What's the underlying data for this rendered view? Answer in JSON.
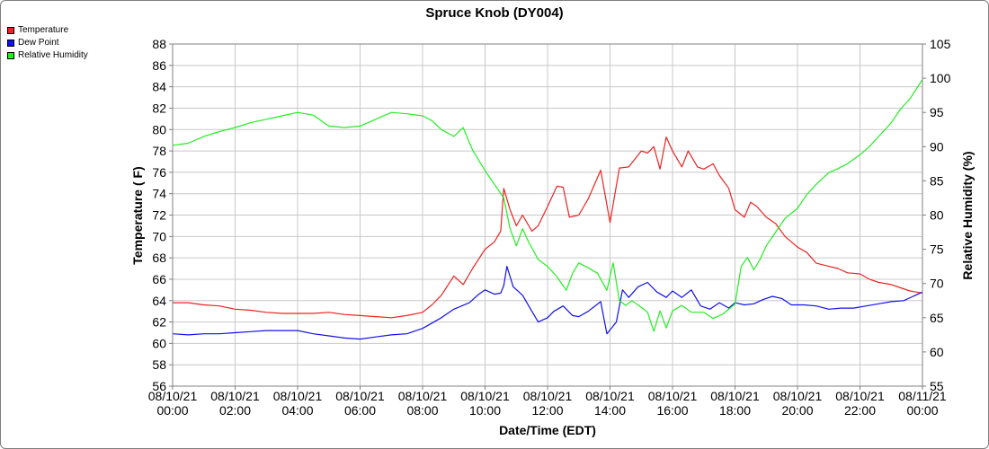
{
  "chart_data": {
    "type": "line",
    "title": "Spruce Knob (DY004)",
    "xlabel": "Date/Time (EDT)",
    "ylabel_left": "Temperature ( F)",
    "ylabel_right": "Relative Humidity (%)",
    "y_left_range": [
      56,
      88
    ],
    "y_right_range": [
      55,
      105
    ],
    "y_left_ticks": [
      56,
      58,
      60,
      62,
      64,
      66,
      68,
      70,
      72,
      74,
      76,
      78,
      80,
      82,
      84,
      86,
      88
    ],
    "y_right_ticks": [
      55,
      60,
      65,
      70,
      75,
      80,
      85,
      90,
      95,
      100,
      105
    ],
    "x_range_hours": [
      0,
      24
    ],
    "x_tick_labels": [
      [
        "08/10/21",
        "00:00"
      ],
      [
        "08/10/21",
        "02:00"
      ],
      [
        "08/10/21",
        "04:00"
      ],
      [
        "08/10/21",
        "06:00"
      ],
      [
        "08/10/21",
        "08:00"
      ],
      [
        "08/10/21",
        "10:00"
      ],
      [
        "08/10/21",
        "12:00"
      ],
      [
        "08/10/21",
        "14:00"
      ],
      [
        "08/10/21",
        "16:00"
      ],
      [
        "08/10/21",
        "18:00"
      ],
      [
        "08/10/21",
        "20:00"
      ],
      [
        "08/10/21",
        "22:00"
      ],
      [
        "08/11/21",
        "00:00"
      ]
    ],
    "grid": true,
    "legend_position": "top-left",
    "series": [
      {
        "name": "Temperature",
        "axis": "left",
        "color": "#ee2222",
        "points": [
          [
            0,
            63.8
          ],
          [
            0.5,
            63.8
          ],
          [
            1.0,
            63.6
          ],
          [
            1.5,
            63.5
          ],
          [
            2.0,
            63.2
          ],
          [
            2.5,
            63.1
          ],
          [
            3.0,
            62.9
          ],
          [
            3.5,
            62.8
          ],
          [
            4.0,
            62.8
          ],
          [
            4.5,
            62.8
          ],
          [
            5.0,
            62.9
          ],
          [
            5.5,
            62.7
          ],
          [
            6.0,
            62.6
          ],
          [
            6.5,
            62.5
          ],
          [
            7.0,
            62.4
          ],
          [
            7.5,
            62.6
          ],
          [
            8.0,
            62.9
          ],
          [
            8.3,
            63.6
          ],
          [
            8.6,
            64.5
          ],
          [
            9.0,
            66.3
          ],
          [
            9.3,
            65.5
          ],
          [
            9.6,
            67.0
          ],
          [
            10.0,
            68.8
          ],
          [
            10.3,
            69.5
          ],
          [
            10.5,
            70.5
          ],
          [
            10.6,
            74.5
          ],
          [
            10.8,
            72.5
          ],
          [
            11.0,
            71.0
          ],
          [
            11.2,
            72.0
          ],
          [
            11.5,
            70.5
          ],
          [
            11.7,
            71.0
          ],
          [
            12.0,
            72.8
          ],
          [
            12.3,
            74.7
          ],
          [
            12.5,
            74.6
          ],
          [
            12.7,
            71.8
          ],
          [
            13.0,
            72.0
          ],
          [
            13.3,
            73.5
          ],
          [
            13.7,
            76.2
          ],
          [
            14.0,
            71.3
          ],
          [
            14.3,
            76.4
          ],
          [
            14.6,
            76.5
          ],
          [
            15.0,
            78.0
          ],
          [
            15.2,
            77.8
          ],
          [
            15.4,
            78.4
          ],
          [
            15.6,
            76.3
          ],
          [
            15.8,
            79.3
          ],
          [
            16.0,
            78.0
          ],
          [
            16.3,
            76.5
          ],
          [
            16.5,
            78.0
          ],
          [
            16.8,
            76.5
          ],
          [
            17.0,
            76.3
          ],
          [
            17.3,
            76.8
          ],
          [
            17.5,
            75.7
          ],
          [
            17.8,
            74.5
          ],
          [
            18.0,
            72.5
          ],
          [
            18.3,
            71.8
          ],
          [
            18.5,
            73.2
          ],
          [
            18.7,
            72.8
          ],
          [
            19.0,
            71.8
          ],
          [
            19.3,
            71.2
          ],
          [
            19.6,
            70.0
          ],
          [
            20.0,
            69.0
          ],
          [
            20.3,
            68.5
          ],
          [
            20.6,
            67.5
          ],
          [
            21.0,
            67.2
          ],
          [
            21.3,
            67.0
          ],
          [
            21.6,
            66.6
          ],
          [
            22.0,
            66.5
          ],
          [
            22.3,
            66.0
          ],
          [
            22.6,
            65.7
          ],
          [
            23.0,
            65.5
          ],
          [
            23.3,
            65.2
          ],
          [
            23.6,
            64.9
          ],
          [
            24.0,
            64.7
          ]
        ]
      },
      {
        "name": "Dew Point",
        "axis": "left",
        "color": "#1111ee",
        "points": [
          [
            0,
            60.9
          ],
          [
            0.5,
            60.8
          ],
          [
            1.0,
            60.9
          ],
          [
            1.5,
            60.9
          ],
          [
            2.0,
            61.0
          ],
          [
            2.5,
            61.1
          ],
          [
            3.0,
            61.2
          ],
          [
            3.5,
            61.2
          ],
          [
            4.0,
            61.2
          ],
          [
            4.5,
            60.9
          ],
          [
            5.0,
            60.7
          ],
          [
            5.5,
            60.5
          ],
          [
            6.0,
            60.4
          ],
          [
            6.5,
            60.6
          ],
          [
            7.0,
            60.8
          ],
          [
            7.5,
            60.9
          ],
          [
            8.0,
            61.4
          ],
          [
            8.3,
            61.9
          ],
          [
            8.6,
            62.4
          ],
          [
            9.0,
            63.2
          ],
          [
            9.5,
            63.8
          ],
          [
            9.8,
            64.6
          ],
          [
            10.0,
            65.0
          ],
          [
            10.3,
            64.6
          ],
          [
            10.5,
            64.7
          ],
          [
            10.6,
            65.4
          ],
          [
            10.7,
            67.2
          ],
          [
            10.9,
            65.3
          ],
          [
            11.2,
            64.5
          ],
          [
            11.5,
            63.0
          ],
          [
            11.7,
            62.0
          ],
          [
            12.0,
            62.4
          ],
          [
            12.2,
            63.0
          ],
          [
            12.5,
            63.5
          ],
          [
            12.8,
            62.6
          ],
          [
            13.0,
            62.5
          ],
          [
            13.3,
            63.0
          ],
          [
            13.7,
            63.9
          ],
          [
            13.9,
            60.9
          ],
          [
            14.2,
            62.0
          ],
          [
            14.4,
            65.0
          ],
          [
            14.6,
            64.3
          ],
          [
            14.9,
            65.3
          ],
          [
            15.2,
            65.7
          ],
          [
            15.5,
            64.8
          ],
          [
            15.8,
            64.3
          ],
          [
            16.0,
            64.9
          ],
          [
            16.3,
            64.3
          ],
          [
            16.6,
            65.0
          ],
          [
            16.9,
            63.5
          ],
          [
            17.2,
            63.2
          ],
          [
            17.5,
            63.8
          ],
          [
            17.8,
            63.3
          ],
          [
            18.0,
            63.8
          ],
          [
            18.3,
            63.6
          ],
          [
            18.6,
            63.7
          ],
          [
            18.9,
            64.1
          ],
          [
            19.2,
            64.4
          ],
          [
            19.5,
            64.2
          ],
          [
            19.8,
            63.6
          ],
          [
            20.2,
            63.6
          ],
          [
            20.6,
            63.5
          ],
          [
            21.0,
            63.2
          ],
          [
            21.4,
            63.3
          ],
          [
            21.8,
            63.3
          ],
          [
            22.2,
            63.5
          ],
          [
            22.6,
            63.7
          ],
          [
            23.0,
            63.9
          ],
          [
            23.4,
            64.0
          ],
          [
            23.7,
            64.4
          ],
          [
            24.0,
            64.8
          ]
        ]
      },
      {
        "name": "Relative Humidity",
        "axis": "right",
        "color": "#22ee22",
        "points": [
          [
            0,
            90.2
          ],
          [
            0.5,
            90.5
          ],
          [
            1.0,
            91.5
          ],
          [
            1.5,
            92.2
          ],
          [
            2.0,
            92.8
          ],
          [
            2.5,
            93.5
          ],
          [
            3.0,
            94.0
          ],
          [
            3.5,
            94.5
          ],
          [
            4.0,
            95.0
          ],
          [
            4.5,
            94.6
          ],
          [
            5.0,
            93.0
          ],
          [
            5.5,
            92.8
          ],
          [
            6.0,
            93.0
          ],
          [
            6.5,
            94.0
          ],
          [
            7.0,
            95.0
          ],
          [
            7.5,
            94.8
          ],
          [
            8.0,
            94.5
          ],
          [
            8.3,
            93.8
          ],
          [
            8.6,
            92.5
          ],
          [
            9.0,
            91.5
          ],
          [
            9.3,
            92.8
          ],
          [
            9.6,
            89.5
          ],
          [
            10.0,
            86.5
          ],
          [
            10.3,
            84.5
          ],
          [
            10.6,
            82.5
          ],
          [
            10.8,
            78.0
          ],
          [
            11.0,
            75.5
          ],
          [
            11.2,
            78.0
          ],
          [
            11.4,
            76.0
          ],
          [
            11.7,
            73.5
          ],
          [
            12.0,
            72.5
          ],
          [
            12.3,
            71.0
          ],
          [
            12.6,
            69.0
          ],
          [
            12.8,
            71.5
          ],
          [
            13.0,
            73.0
          ],
          [
            13.3,
            72.3
          ],
          [
            13.6,
            71.5
          ],
          [
            13.9,
            69.0
          ],
          [
            14.1,
            73.0
          ],
          [
            14.3,
            67.5
          ],
          [
            14.5,
            66.8
          ],
          [
            14.7,
            67.5
          ],
          [
            15.0,
            66.5
          ],
          [
            15.2,
            65.8
          ],
          [
            15.4,
            63.0
          ],
          [
            15.6,
            66.0
          ],
          [
            15.8,
            63.5
          ],
          [
            16.0,
            66.0
          ],
          [
            16.3,
            66.8
          ],
          [
            16.6,
            65.8
          ],
          [
            17.0,
            65.8
          ],
          [
            17.3,
            64.9
          ],
          [
            17.6,
            65.5
          ],
          [
            18.0,
            67.0
          ],
          [
            18.2,
            72.5
          ],
          [
            18.4,
            73.8
          ],
          [
            18.6,
            72.0
          ],
          [
            18.8,
            73.5
          ],
          [
            19.0,
            75.5
          ],
          [
            19.3,
            77.5
          ],
          [
            19.6,
            79.5
          ],
          [
            20.0,
            81.0
          ],
          [
            20.3,
            83.0
          ],
          [
            20.6,
            84.5
          ],
          [
            21.0,
            86.2
          ],
          [
            21.3,
            86.8
          ],
          [
            21.6,
            87.5
          ],
          [
            22.0,
            88.8
          ],
          [
            22.3,
            90.0
          ],
          [
            22.6,
            91.5
          ],
          [
            23.0,
            93.5
          ],
          [
            23.3,
            95.5
          ],
          [
            23.6,
            97.0
          ],
          [
            24.0,
            99.8
          ]
        ]
      }
    ]
  }
}
